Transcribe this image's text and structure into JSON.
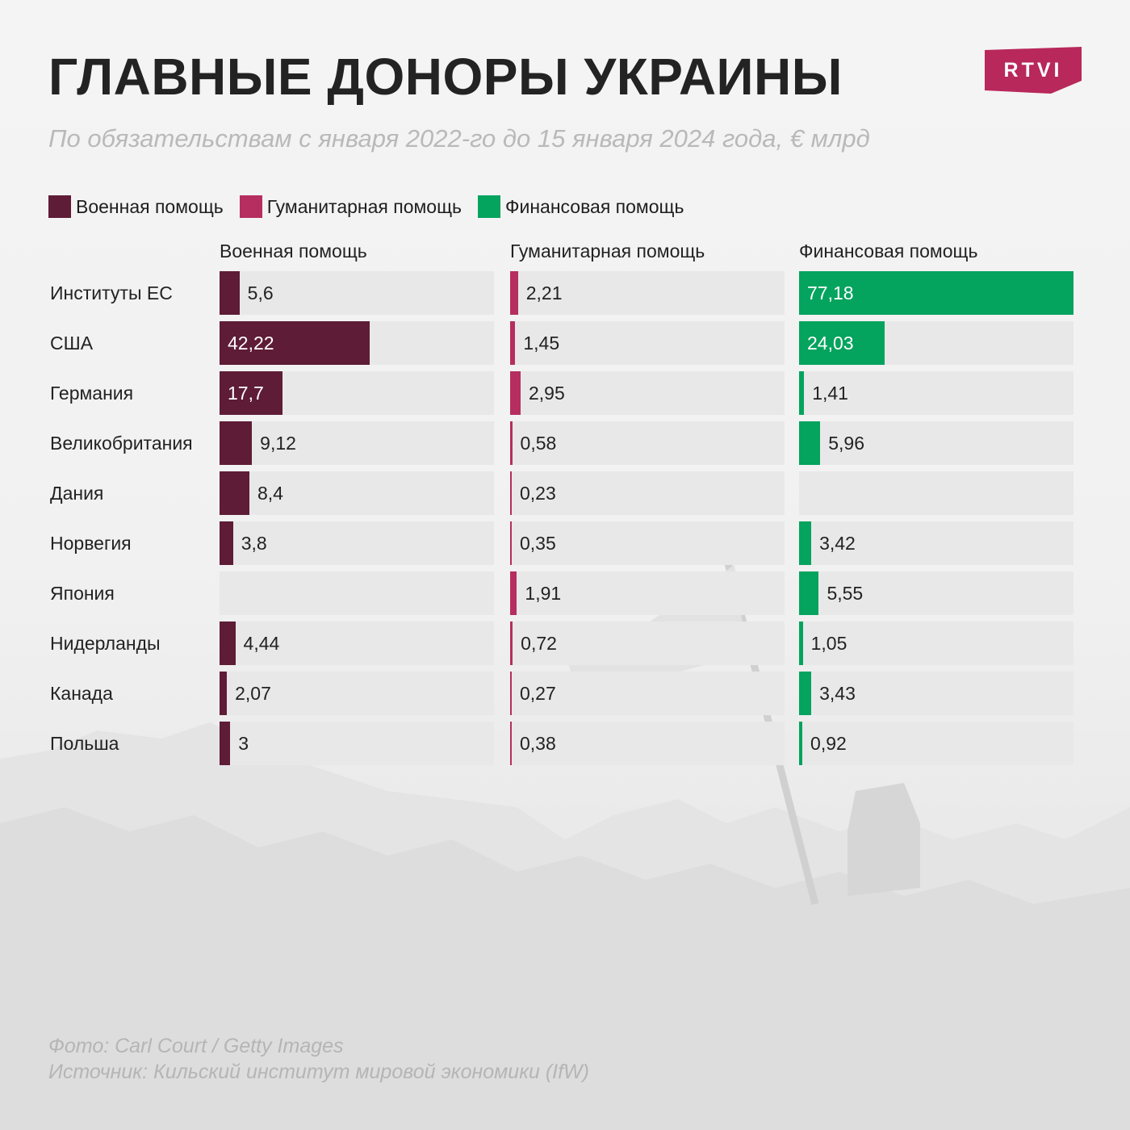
{
  "title": "ГЛАВНЫЕ ДОНОРЫ УКРАИНЫ",
  "subtitle": "По обязательствам с января 2022-го до 15 января 2024 года, € млрд",
  "logo": {
    "text": "RTVI",
    "color": "#b8285a"
  },
  "legend": [
    {
      "label": "Военная помощь",
      "color": "#5e1c36"
    },
    {
      "label": "Гуманитарная помощь",
      "color": "#b52e5f"
    },
    {
      "label": "Финансовая помощь",
      "color": "#04a35e"
    }
  ],
  "chart_data": {
    "type": "bar",
    "orientation": "horizontal",
    "title": "ГЛАВНЫЕ ДОНОРЫ УКРАИНЫ",
    "subtitle": "По обязательствам с января 2022-го до 15 января 2024 года, € млрд",
    "categories": [
      "Институты ЕС",
      "США",
      "Германия",
      "Великобритания",
      "Дания",
      "Норвегия",
      "Япония",
      "Нидерланды",
      "Канада",
      "Польша"
    ],
    "series": [
      {
        "name": "Военная помощь",
        "color": "#5e1c36",
        "labels": [
          "5,6",
          "42,22",
          "17,7",
          "9,12",
          "8,4",
          "3,8",
          "",
          "4,44",
          "2,07",
          "3"
        ],
        "values": [
          5.6,
          42.22,
          17.7,
          9.12,
          8.4,
          3.8,
          null,
          4.44,
          2.07,
          3
        ]
      },
      {
        "name": "Гуманитарная помощь",
        "color": "#b52e5f",
        "labels": [
          "2,21",
          "1,45",
          "2,95",
          "0,58",
          "0,23",
          "0,35",
          "1,91",
          "0,72",
          "0,27",
          "0,38"
        ],
        "values": [
          2.21,
          1.45,
          2.95,
          0.58,
          0.23,
          0.35,
          1.91,
          0.72,
          0.27,
          0.38
        ]
      },
      {
        "name": "Финансовая помощь",
        "color": "#04a35e",
        "labels": [
          "77,18",
          "24,03",
          "1,41",
          "5,96",
          "",
          "3,42",
          "5,55",
          "1,05",
          "3,43",
          "0,92"
        ],
        "values": [
          77.18,
          24.03,
          1.41,
          5.96,
          null,
          3.42,
          5.55,
          1.05,
          3.43,
          0.92
        ]
      }
    ],
    "xlim": [
      0,
      77.18
    ],
    "grid": false,
    "legend_position": "top-left"
  },
  "footer": {
    "photo": "Фото: Carl Court / Getty Images",
    "source": "Источник: Кильский институт мировой экономики (IfW)"
  }
}
